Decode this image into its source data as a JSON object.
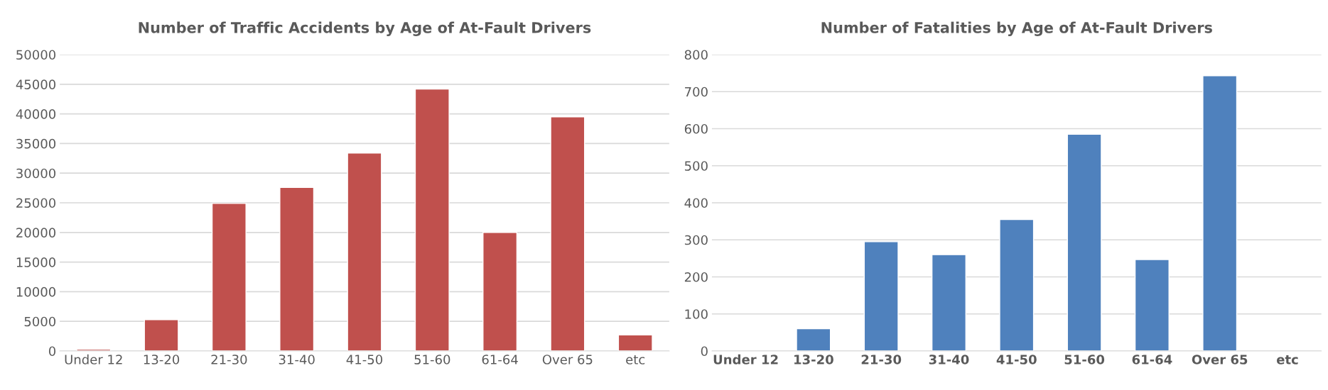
{
  "chart_data": [
    {
      "type": "bar",
      "title": "Number of Traffic Accidents by Age of At-Fault Drivers",
      "categories": [
        "Under 12",
        "13-20",
        "21-30",
        "31-40",
        "41-50",
        "51-60",
        "61-64",
        "Over 65",
        "etc"
      ],
      "values": [
        300,
        5300,
        24900,
        27600,
        33400,
        44200,
        20000,
        39500,
        2700
      ],
      "color": "#c0504d",
      "ylim": [
        0,
        50000
      ],
      "yticks": [
        0,
        5000,
        10000,
        15000,
        20000,
        25000,
        30000,
        35000,
        40000,
        45000,
        50000
      ],
      "grid": "y"
    },
    {
      "type": "bar",
      "title": "Number of Fatalities by Age of At-Fault Drivers",
      "categories": [
        "Under 12",
        "13-20",
        "21-30",
        "31-40",
        "41-50",
        "51-60",
        "61-64",
        "Over 65",
        "etc"
      ],
      "values": [
        null,
        60,
        295,
        260,
        355,
        585,
        247,
        743,
        null
      ],
      "color": "#4f81bd",
      "ylim": [
        0,
        800
      ],
      "yticks": [
        0,
        100,
        200,
        300,
        400,
        500,
        600,
        700,
        800
      ],
      "grid": "y"
    }
  ]
}
